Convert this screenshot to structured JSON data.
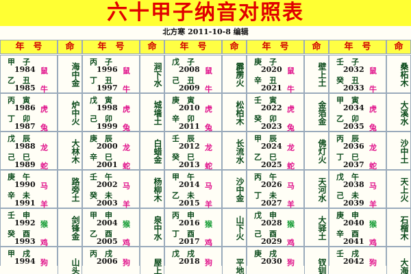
{
  "title": "六十甲子纳音对照表",
  "subtitle": "北方寒 2011-10-8 编辑",
  "header": {
    "year": "年　号",
    "nayin": "命"
  },
  "groups": [
    {
      "rows": [
        {
          "pairs": [
            {
              "ganzhi": "甲　子",
              "year": 1984,
              "animal": "鼠"
            },
            {
              "ganzhi": "乙　丑",
              "year": 1985,
              "animal": "牛"
            }
          ],
          "nayin": "海中金"
        },
        {
          "pairs": [
            {
              "ganzhi": "丙　寅",
              "year": 1986,
              "animal": "虎"
            },
            {
              "ganzhi": "丁　卯",
              "year": 1987,
              "animal": "兔"
            }
          ],
          "nayin": "炉中火"
        },
        {
          "pairs": [
            {
              "ganzhi": "戊　辰",
              "year": 1988,
              "animal": "龙"
            },
            {
              "ganzhi": "己　巳",
              "year": 1989,
              "animal": "蛇"
            }
          ],
          "nayin": "大林木"
        },
        {
          "pairs": [
            {
              "ganzhi": "庚　午",
              "year": 1990,
              "animal": "马"
            },
            {
              "ganzhi": "辛　未",
              "year": 1991,
              "animal": "羊"
            }
          ],
          "nayin": "路旁土"
        },
        {
          "pairs": [
            {
              "ganzhi": "壬　申",
              "year": 1992,
              "animal": "猴"
            },
            {
              "ganzhi": "癸　酉",
              "year": 1993,
              "animal": "鸡"
            }
          ],
          "nayin": "剑锋金"
        },
        {
          "pairs": [
            {
              "ganzhi": "甲　戌",
              "year": 1994,
              "animal": "狗"
            }
          ],
          "nayin": "山头"
        }
      ]
    },
    {
      "rows": [
        {
          "pairs": [
            {
              "ganzhi": "丙　子",
              "year": 1996,
              "animal": "鼠"
            },
            {
              "ganzhi": "丁　丑",
              "year": 1997,
              "animal": "牛"
            }
          ],
          "nayin": "涧下水"
        },
        {
          "pairs": [
            {
              "ganzhi": "戊　寅",
              "year": 1998,
              "animal": "虎"
            },
            {
              "ganzhi": "己　卯",
              "year": 1999,
              "animal": "兔"
            }
          ],
          "nayin": "城墙土"
        },
        {
          "pairs": [
            {
              "ganzhi": "庚　辰",
              "year": 2000,
              "animal": "龙"
            },
            {
              "ganzhi": "辛　巳",
              "year": 2001,
              "animal": "蛇"
            }
          ],
          "nayin": "白蜡金"
        },
        {
          "pairs": [
            {
              "ganzhi": "壬　午",
              "year": 2002,
              "animal": "马"
            },
            {
              "ganzhi": "癸　未",
              "year": 2003,
              "animal": "羊"
            }
          ],
          "nayin": "杨柳木"
        },
        {
          "pairs": [
            {
              "ganzhi": "甲　申",
              "year": 2004,
              "animal": "猴"
            },
            {
              "ganzhi": "乙　酉",
              "year": 2005,
              "animal": "鸡"
            }
          ],
          "nayin": "泉中水"
        },
        {
          "pairs": [
            {
              "ganzhi": "丙　戌",
              "year": 2006,
              "animal": "狗"
            }
          ],
          "nayin": "屋上"
        }
      ]
    },
    {
      "rows": [
        {
          "pairs": [
            {
              "ganzhi": "戊　子",
              "year": 2008,
              "animal": "鼠"
            },
            {
              "ganzhi": "己　丑",
              "year": 2009,
              "animal": "牛"
            }
          ],
          "nayin": "霹雳火"
        },
        {
          "pairs": [
            {
              "ganzhi": "庚　寅",
              "year": 2010,
              "animal": "虎"
            },
            {
              "ganzhi": "辛　卯",
              "year": 2011,
              "animal": "兔"
            }
          ],
          "nayin": "松柏木"
        },
        {
          "pairs": [
            {
              "ganzhi": "壬　辰",
              "year": 2012,
              "animal": "龙"
            },
            {
              "ganzhi": "癸　巳",
              "year": 2013,
              "animal": "蛇"
            }
          ],
          "nayin": "长流水"
        },
        {
          "pairs": [
            {
              "ganzhi": "甲　午",
              "year": 2014,
              "animal": "马"
            },
            {
              "ganzhi": "乙　未",
              "year": 2015,
              "animal": "羊"
            }
          ],
          "nayin": "沙中金"
        },
        {
          "pairs": [
            {
              "ganzhi": "丙　申",
              "year": 2016,
              "animal": "猴"
            },
            {
              "ganzhi": "丁　酉",
              "year": 2017,
              "animal": "鸡"
            }
          ],
          "nayin": "山下火"
        },
        {
          "pairs": [
            {
              "ganzhi": "戊　戌",
              "year": 2018,
              "animal": "狗"
            }
          ],
          "nayin": "平地"
        }
      ]
    },
    {
      "rows": [
        {
          "pairs": [
            {
              "ganzhi": "庚　子",
              "year": 2020,
              "animal": "鼠"
            },
            {
              "ganzhi": "辛　丑",
              "year": 2021,
              "animal": "牛"
            }
          ],
          "nayin": "壁上土"
        },
        {
          "pairs": [
            {
              "ganzhi": "壬　寅",
              "year": 2022,
              "animal": "虎"
            },
            {
              "ganzhi": "癸　卯",
              "year": 2023,
              "animal": "兔"
            }
          ],
          "nayin": "金箔金"
        },
        {
          "pairs": [
            {
              "ganzhi": "甲　辰",
              "year": 2024,
              "animal": "龙"
            },
            {
              "ganzhi": "乙　巳",
              "year": 2025,
              "animal": "蛇"
            }
          ],
          "nayin": "佛灯火"
        },
        {
          "pairs": [
            {
              "ganzhi": "丙　午",
              "year": 2026,
              "animal": "马"
            },
            {
              "ganzhi": "丁　未",
              "year": 2027,
              "animal": "羊"
            }
          ],
          "nayin": "天河水"
        },
        {
          "pairs": [
            {
              "ganzhi": "戊　申",
              "year": 2028,
              "animal": "猴"
            },
            {
              "ganzhi": "己　酉",
              "year": 2029,
              "animal": "鸡"
            }
          ],
          "nayin": "大驿土"
        },
        {
          "pairs": [
            {
              "ganzhi": "庚　戌",
              "year": 2030,
              "animal": "狗"
            }
          ],
          "nayin": "钗钏"
        }
      ]
    },
    {
      "rows": [
        {
          "pairs": [
            {
              "ganzhi": "壬　子",
              "year": 2032,
              "animal": "鼠"
            },
            {
              "ganzhi": "癸　丑",
              "year": 2033,
              "animal": "牛"
            }
          ],
          "nayin": "桑柘木"
        },
        {
          "pairs": [
            {
              "ganzhi": "甲　寅",
              "year": 2034,
              "animal": "虎"
            },
            {
              "ganzhi": "乙　卯",
              "year": 2035,
              "animal": "兔"
            }
          ],
          "nayin": "大溪水"
        },
        {
          "pairs": [
            {
              "ganzhi": "丙　辰",
              "year": 2036,
              "animal": "龙"
            },
            {
              "ganzhi": "丁　巳",
              "year": 2037,
              "animal": "蛇"
            }
          ],
          "nayin": "沙中土"
        },
        {
          "pairs": [
            {
              "ganzhi": "戊　午",
              "year": 2038,
              "animal": "马"
            },
            {
              "ganzhi": "己　未",
              "year": 2039,
              "animal": "羊"
            }
          ],
          "nayin": "天上火"
        },
        {
          "pairs": [
            {
              "ganzhi": "庚　申",
              "year": 2040,
              "animal": "猴"
            },
            {
              "ganzhi": "辛　酉",
              "year": 2041,
              "animal": "鸡"
            }
          ],
          "nayin": "石榴木"
        },
        {
          "pairs": [
            {
              "ganzhi": "壬　戌",
              "year": 2042,
              "animal": "狗"
            }
          ],
          "nayin": "大海"
        }
      ]
    }
  ]
}
